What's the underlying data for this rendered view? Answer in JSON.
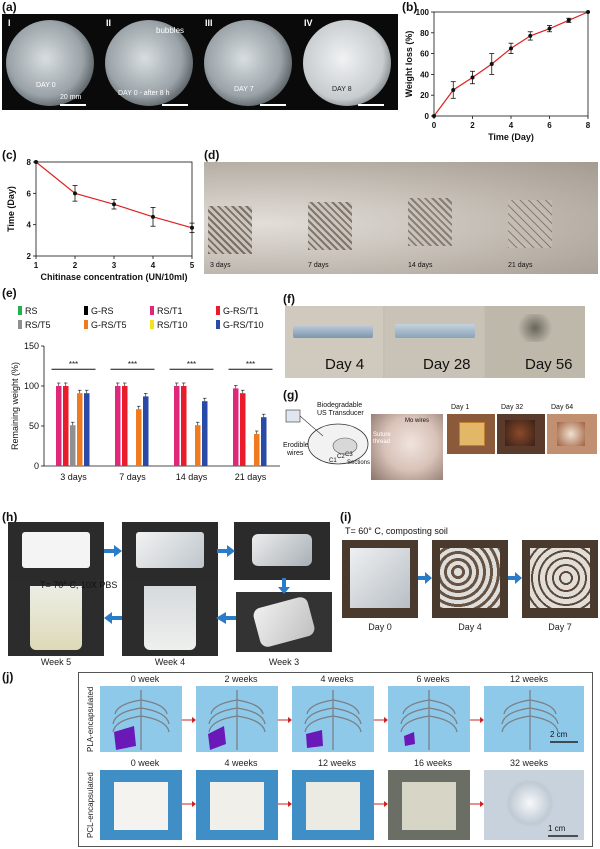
{
  "panels": {
    "a": {
      "label": "(a)",
      "roman": [
        "I",
        "II",
        "III",
        "IV"
      ],
      "days": [
        "DAY 0",
        "DAY 0 - after 8 h",
        "DAY 7",
        "DAY 8"
      ],
      "bubbles": "bubbles",
      "scale": "20 mm"
    },
    "b": {
      "label": "(b)"
    },
    "c": {
      "label": "(c)"
    },
    "d": {
      "label": "(d)",
      "days": [
        "3 days",
        "7 days",
        "14 days",
        "21 days"
      ]
    },
    "e": {
      "label": "(e)",
      "legend": [
        "RS",
        "G-RS",
        "RS/T1",
        "G-RS/T1",
        "RS/T5",
        "G-RS/T5",
        "RS/T10",
        "G-RS/T10"
      ],
      "sig": "***"
    },
    "f": {
      "label": "(f)",
      "days": [
        "Day 4",
        "Day 28",
        "Day 56"
      ]
    },
    "g": {
      "label": "(g)",
      "bio": "Biodegradable",
      "us": "US Transducer",
      "erodible": "Erodible",
      "wires": "wires",
      "c1": "C1",
      "c2": "C2",
      "c3": "C3",
      "sections": "Sections",
      "suture": "Suture",
      "thread": "thread",
      "mo": "Mo wires",
      "days": [
        "Day 1",
        "Day 32",
        "Day 64"
      ]
    },
    "h": {
      "label": "(h)",
      "cond": "T= 70° C, 10X PBS",
      "weeks": [
        "Week 5",
        "Week 4",
        "Week 3"
      ]
    },
    "i": {
      "label": "(i)",
      "cond": "T= 60° C, composting soil",
      "days": [
        "Day 0",
        "Day 4",
        "Day 7"
      ]
    },
    "j": {
      "label": "(j)",
      "row1": "PLA-encapsulated",
      "row2": "PCL-encapsulated",
      "weeks1": [
        "0 week",
        "2 weeks",
        "4 weeks",
        "6 weeks",
        "12 weeks"
      ],
      "weeks2": [
        "0 week",
        "4 weeks",
        "12 weeks",
        "16 weeks",
        "32 weeks"
      ],
      "scale": "2 cm",
      "scale2": "1 cm"
    }
  },
  "chart_data": [
    {
      "type": "line",
      "xlabel": "Time (Day)",
      "ylabel": "Weight loss (%)",
      "xlim": [
        0,
        8
      ],
      "ylim": [
        0,
        100
      ],
      "xticks": [
        "0",
        "2",
        "4",
        "6",
        "8"
      ],
      "yticks": [
        "0",
        "20",
        "40",
        "60",
        "80",
        "100"
      ],
      "x": [
        0,
        1,
        2,
        3,
        4,
        5,
        6,
        7,
        8
      ],
      "y": [
        0,
        25,
        37,
        50,
        65,
        77,
        84,
        92,
        100
      ],
      "err": [
        0,
        8,
        6,
        10,
        5,
        4,
        3,
        2,
        0
      ],
      "color": "#e02020"
    },
    {
      "type": "line",
      "xlabel": "Chitinase concentration (UN/10ml)",
      "ylabel": "Time (Day)",
      "xlim": [
        1,
        5
      ],
      "ylim": [
        2,
        8
      ],
      "xticks": [
        "1",
        "2",
        "3",
        "4",
        "5"
      ],
      "yticks": [
        "2",
        "4",
        "6",
        "8"
      ],
      "x": [
        1,
        2,
        3,
        4,
        5
      ],
      "y": [
        8,
        6,
        5.3,
        4.5,
        3.8
      ],
      "err": [
        0,
        0.5,
        0.3,
        0.6,
        0.3
      ],
      "color": "#e02020"
    },
    {
      "type": "bar",
      "xlabel": "",
      "ylabel": "Remaining weight (%)",
      "ylim": [
        0,
        150
      ],
      "yticks": [
        "0",
        "50",
        "100",
        "150"
      ],
      "categories": [
        "3 days",
        "7 days",
        "14 days",
        "21 days"
      ],
      "series": [
        {
          "name": "RS/T1",
          "color": "#e0287a",
          "values": [
            100,
            100,
            100,
            97
          ]
        },
        {
          "name": "G-RS/T1",
          "color": "#e81c2a",
          "values": [
            100,
            100,
            100,
            91
          ]
        },
        {
          "name": "RS/T5",
          "color": "#909090",
          "values": [
            51,
            0,
            0,
            0
          ]
        },
        {
          "name": "G-RS/T5",
          "color": "#f07a20",
          "values": [
            91,
            71,
            51,
            40
          ]
        },
        {
          "name": "G-RS/T10",
          "color": "#2a4aa8",
          "values": [
            91,
            87,
            81,
            61
          ]
        }
      ],
      "legend_colors": [
        "#22b14c",
        "#000000",
        "#e0287a",
        "#e81c2a",
        "#909090",
        "#f07a20",
        "#f2e41a",
        "#2a4aa8"
      ]
    }
  ]
}
